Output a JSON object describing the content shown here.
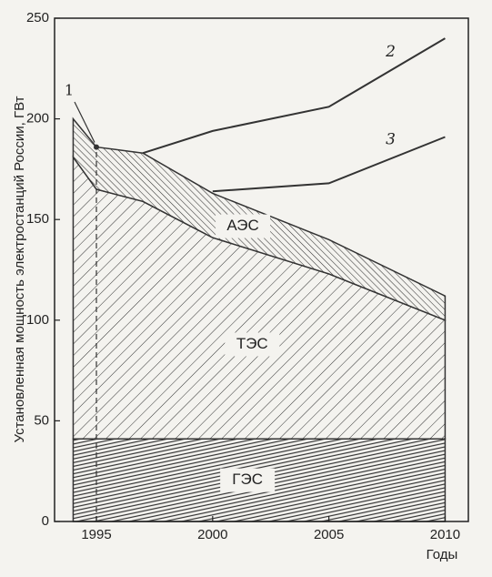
{
  "chart_data": {
    "type": "area",
    "ylabel": "Установленная мощность электростанций России, ГВт",
    "xlabel": "Годы",
    "x": [
      1994,
      1995,
      1997,
      2000,
      2005,
      2010
    ],
    "series": [
      {
        "name": "ГЭС",
        "type": "area",
        "color": "#333333",
        "values": [
          41,
          41,
          41,
          41,
          41,
          41
        ]
      },
      {
        "name": "ТЭС",
        "type": "area",
        "color": "#333333",
        "values": [
          140,
          124,
          118,
          100,
          82,
          59
        ]
      },
      {
        "name": "АЭС",
        "type": "area",
        "color": "#333333",
        "values": [
          19,
          21,
          24,
          22,
          17,
          12
        ]
      },
      {
        "name": "2",
        "type": "line",
        "color": "#333333",
        "values": [
          null,
          null,
          183,
          194,
          206,
          240
        ]
      },
      {
        "name": "3",
        "type": "line",
        "color": "#333333",
        "values": [
          null,
          null,
          null,
          164,
          168,
          191
        ]
      }
    ],
    "annotations": [
      "1"
    ],
    "xlim": [
      1993.2,
      2011
    ],
    "ylim": [
      0,
      250
    ],
    "xticks": [
      1995,
      2000,
      2005,
      2010
    ],
    "yticks": [
      0,
      50,
      100,
      150,
      200,
      250
    ]
  }
}
